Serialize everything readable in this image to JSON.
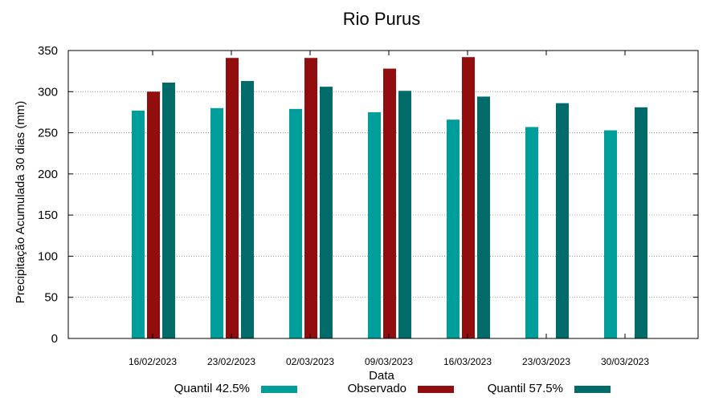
{
  "chart_data": {
    "type": "bar",
    "title": "Rio Purus",
    "xlabel": "Data",
    "ylabel": "Precipitação Acumulada 30 dias (mm)",
    "ylim": [
      0,
      350
    ],
    "yticks": [
      0,
      50,
      100,
      150,
      200,
      250,
      300,
      350
    ],
    "grid": true,
    "legend_position": "bottom",
    "categories": [
      "16/02/2023",
      "23/02/2023",
      "02/03/2023",
      "09/03/2023",
      "16/03/2023",
      "23/03/2023",
      "30/03/2023"
    ],
    "series": [
      {
        "name": "Quantil 42.5%",
        "color": "#009e9a",
        "values": [
          277,
          280,
          279,
          275,
          266,
          257,
          253
        ]
      },
      {
        "name": "Observado",
        "color": "#920e0e",
        "values": [
          300,
          341,
          341,
          328,
          342,
          null,
          null
        ]
      },
      {
        "name": "Quantil 57.5%",
        "color": "#006b68",
        "values": [
          311,
          313,
          306,
          301,
          294,
          286,
          281
        ]
      }
    ]
  }
}
